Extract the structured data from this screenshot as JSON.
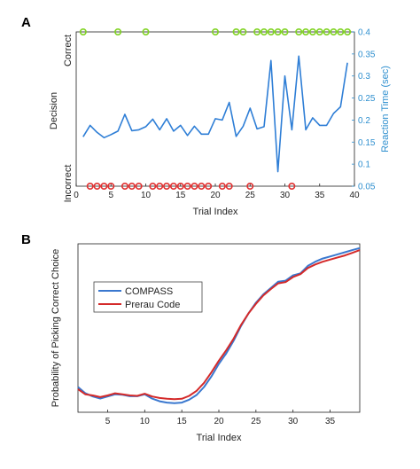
{
  "colors": {
    "reaction": "#2e7ed6",
    "correct_marker": "#7fd320",
    "incorrect_marker": "#e03030",
    "compass": "#3a78cf",
    "perrau": "#d42a2a",
    "axis": "#222222",
    "right_axis": "#2e8fcf"
  },
  "panelA": {
    "letter": "A",
    "y_top_label": "Correct",
    "y_mid_label": "Decision",
    "y_bottom_label": "Incorrect"
  },
  "panelB": {
    "letter": "B"
  },
  "chart_data": [
    {
      "type": "line",
      "panel": "A",
      "xlabel": "Trial Index",
      "ylabel_right": "Reaction Time (sec)",
      "xlim": [
        0,
        40
      ],
      "ylim_right": [
        0.05,
        0.4
      ],
      "xticks": [
        0,
        5,
        10,
        15,
        20,
        25,
        30,
        35,
        40
      ],
      "yticks_right": [
        0.05,
        0.1,
        0.15,
        0.2,
        0.25,
        0.3,
        0.35,
        0.4
      ],
      "x": [
        1,
        2,
        3,
        4,
        5,
        6,
        7,
        8,
        9,
        10,
        11,
        12,
        13,
        14,
        15,
        16,
        17,
        18,
        19,
        20,
        21,
        22,
        23,
        24,
        25,
        26,
        27,
        28,
        29,
        30,
        31,
        32,
        33,
        34,
        35,
        36,
        37,
        38,
        39
      ],
      "reaction_time": [
        0.162,
        0.188,
        0.172,
        0.16,
        0.167,
        0.175,
        0.213,
        0.176,
        0.178,
        0.185,
        0.202,
        0.178,
        0.203,
        0.175,
        0.188,
        0.165,
        0.186,
        0.168,
        0.168,
        0.203,
        0.2,
        0.24,
        0.163,
        0.186,
        0.227,
        0.18,
        0.185,
        0.335,
        0.083,
        0.3,
        0.178,
        0.345,
        0.178,
        0.205,
        0.188,
        0.188,
        0.215,
        0.23,
        0.33
      ],
      "correct_trials": [
        1,
        6,
        10,
        20,
        23,
        24,
        26,
        27,
        28,
        29,
        30,
        32,
        33,
        34,
        35,
        36,
        37,
        38,
        39
      ],
      "incorrect_trials": [
        2,
        3,
        4,
        5,
        7,
        8,
        9,
        11,
        12,
        13,
        14,
        15,
        16,
        17,
        18,
        19,
        21,
        22,
        25,
        31
      ]
    },
    {
      "type": "line",
      "panel": "B",
      "xlabel": "Trial Index",
      "ylabel": "Probability of Picking Correct Choice",
      "xlim": [
        1,
        39
      ],
      "ylim": [
        0.15,
        0.95
      ],
      "xticks": [
        5,
        10,
        15,
        20,
        25,
        30,
        35
      ],
      "legend_placement": "left",
      "series": [
        {
          "name": "COMPASS",
          "x": [
            1,
            2,
            3,
            4,
            5,
            6,
            7,
            8,
            9,
            10,
            11,
            12,
            13,
            14,
            15,
            16,
            17,
            18,
            19,
            20,
            21,
            22,
            23,
            24,
            25,
            26,
            27,
            28,
            29,
            30,
            31,
            32,
            33,
            34,
            35,
            36,
            37,
            38,
            39
          ],
          "values": [
            0.27,
            0.24,
            0.225,
            0.215,
            0.225,
            0.235,
            0.233,
            0.226,
            0.226,
            0.235,
            0.215,
            0.202,
            0.196,
            0.193,
            0.196,
            0.21,
            0.232,
            0.27,
            0.32,
            0.38,
            0.43,
            0.49,
            0.56,
            0.62,
            0.67,
            0.71,
            0.74,
            0.77,
            0.775,
            0.8,
            0.81,
            0.845,
            0.865,
            0.88,
            0.89,
            0.9,
            0.91,
            0.92,
            0.93
          ]
        },
        {
          "name": "Prerau Code",
          "x": [
            1,
            2,
            3,
            4,
            5,
            6,
            7,
            8,
            9,
            10,
            11,
            12,
            13,
            14,
            15,
            16,
            17,
            18,
            19,
            20,
            21,
            22,
            23,
            24,
            25,
            26,
            27,
            28,
            29,
            30,
            31,
            32,
            33,
            34,
            35,
            36,
            37,
            38,
            39
          ],
          "values": [
            0.26,
            0.235,
            0.23,
            0.222,
            0.23,
            0.24,
            0.235,
            0.23,
            0.228,
            0.238,
            0.225,
            0.218,
            0.214,
            0.212,
            0.214,
            0.228,
            0.252,
            0.29,
            0.34,
            0.395,
            0.445,
            0.5,
            0.565,
            0.62,
            0.665,
            0.705,
            0.735,
            0.762,
            0.768,
            0.792,
            0.806,
            0.835,
            0.852,
            0.865,
            0.875,
            0.885,
            0.895,
            0.907,
            0.92
          ]
        }
      ]
    }
  ]
}
